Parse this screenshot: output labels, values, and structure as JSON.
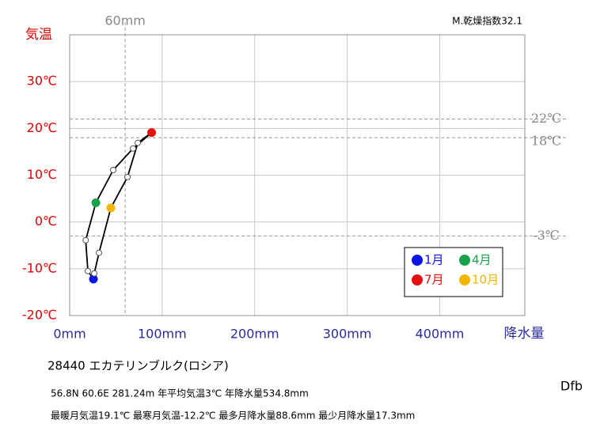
{
  "chart_data": {
    "type": "climograph",
    "title": "28440  エカテリンブルク(ロシア)",
    "aridity_index": "M.乾燥指数32.1",
    "koppen": "Dfb",
    "info": [
      "56.8N  60.6E  281.24m  年平均気温3℃ 年降水量534.8mm",
      "最暖月気温19.1℃ 最寒月気温-12.2℃ 最多月降水量88.6mm 最少月降水量17.3mm"
    ],
    "y_label": "気温",
    "x_label": "降水量",
    "x": [
      25.7,
      19.7,
      17.3,
      28.3,
      47.1,
      68.5,
      88.6,
      73.7,
      62.5,
      44.5,
      31.7,
      26.6
    ],
    "values": [
      -12.2,
      -10.5,
      -3.9,
      4.1,
      11.1,
      15.7,
      19.1,
      16.9,
      9.6,
      3.0,
      -6.6,
      -11.0
    ],
    "point_colors": [
      "#0a14e6",
      "#ffffff",
      "#ffffff",
      "#17a34a",
      "#ffffff",
      "#ffffff",
      "#e60e0e",
      "#ffffff",
      "#ffffff",
      "#f2b705",
      "#ffffff",
      "#ffffff"
    ],
    "line_color": "#000000",
    "legend": [
      {
        "label": "1月",
        "color": "#0a14e6"
      },
      {
        "label": "4月",
        "color": "#17a34a"
      },
      {
        "label": "7月",
        "color": "#e60e0e"
      },
      {
        "label": "10月",
        "color": "#f2b705"
      }
    ],
    "xlim": [
      0,
      492
    ],
    "ylim": [
      -20,
      40
    ],
    "xticks": [
      {
        "value": 0,
        "label": "0mm"
      },
      {
        "value": 100,
        "label": "100mm"
      },
      {
        "value": 200,
        "label": "200mm"
      },
      {
        "value": 300,
        "label": "300mm"
      },
      {
        "value": 400,
        "label": "400mm"
      }
    ],
    "yticks": [
      {
        "value": -20,
        "label": "-20℃"
      },
      {
        "value": -10,
        "label": "-10℃"
      },
      {
        "value": 0,
        "label": "0℃"
      },
      {
        "value": 10,
        "label": "10℃"
      },
      {
        "value": 20,
        "label": "20℃"
      },
      {
        "value": 30,
        "label": "30℃"
      }
    ],
    "ref_x": [
      {
        "value": 60,
        "label": "60mm"
      }
    ],
    "ref_y": [
      {
        "value": 22,
        "label": "22℃"
      },
      {
        "value": 18,
        "label": "18℃"
      },
      {
        "value": -3,
        "label": "-3℃"
      }
    ],
    "grid": true
  }
}
